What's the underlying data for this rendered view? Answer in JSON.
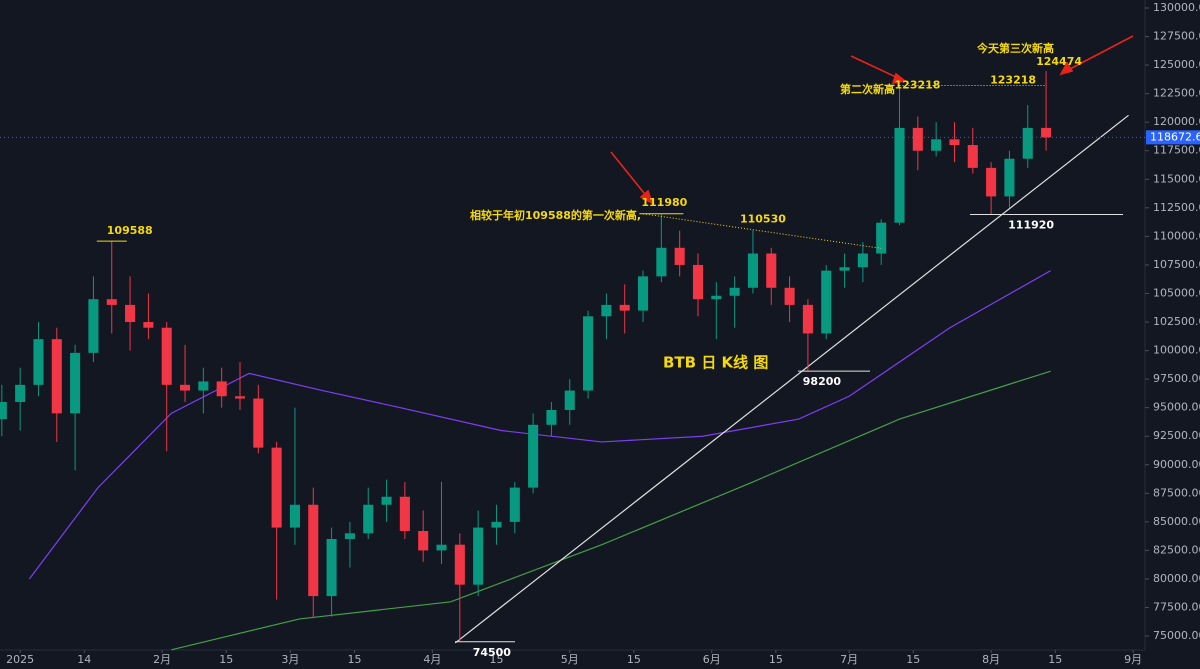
{
  "chart_data": {
    "type": "candlestick",
    "title": "BTB 日  K线 图",
    "annotations": [
      "相较于年初109588的第一次新高,",
      "第二次新高",
      "今天第三次新高"
    ],
    "up_color": "#089981",
    "down_color": "#f23645",
    "x": [
      -4,
      0,
      4,
      8,
      12,
      16,
      20,
      24,
      28,
      32,
      36,
      40,
      44,
      48,
      52,
      56,
      60,
      64,
      68,
      72,
      76,
      80,
      84,
      88,
      92,
      96,
      100,
      104,
      108,
      112,
      116,
      120,
      124,
      128,
      132,
      136,
      140,
      144,
      148,
      152,
      156,
      160,
      164,
      168,
      172,
      176,
      180,
      184,
      188,
      192,
      196,
      200,
      204,
      208,
      212,
      216,
      220,
      224
    ],
    "open": [
      94000,
      95500,
      97000,
      101000,
      94500,
      99800,
      104500,
      104000,
      102500,
      102000,
      97000,
      96500,
      97300,
      96000,
      95800,
      91500,
      84500,
      86500,
      78500,
      83500,
      84000,
      86500,
      87200,
      84200,
      82500,
      83000,
      79500,
      84500,
      85000,
      88000,
      93500,
      94800,
      96500,
      103000,
      104000,
      103500,
      106500,
      109000,
      107500,
      104500,
      104800,
      105500,
      108500,
      105500,
      104000,
      101500,
      107000,
      107300,
      108500,
      111200,
      119500,
      117500,
      118500,
      118000,
      116000,
      113500,
      116800,
      119500
    ],
    "high": [
      97000,
      98500,
      102500,
      102000,
      100500,
      106500,
      109588,
      106500,
      105000,
      102500,
      100500,
      98500,
      98500,
      99000,
      97000,
      92000,
      95000,
      88000,
      84500,
      85000,
      88000,
      88700,
      88500,
      86000,
      88500,
      84000,
      86000,
      86500,
      88500,
      94500,
      95500,
      97500,
      103500,
      105000,
      105800,
      107000,
      111980,
      110500,
      108500,
      106000,
      106500,
      110530,
      109000,
      106500,
      104500,
      107500,
      108500,
      109500,
      111500,
      123218,
      120500,
      120000,
      120000,
      119500,
      116500,
      117500,
      121500,
      124474
    ],
    "low": [
      92500,
      93000,
      96000,
      92000,
      89500,
      99000,
      101500,
      100000,
      101000,
      91200,
      95500,
      94500,
      95000,
      94800,
      91000,
      78200,
      83000,
      76600,
      76700,
      81000,
      83500,
      85000,
      83500,
      81500,
      81300,
      74500,
      78500,
      83000,
      84000,
      87500,
      92500,
      93500,
      95800,
      101000,
      101500,
      102500,
      106000,
      106500,
      103000,
      101000,
      102000,
      105000,
      104000,
      102500,
      98200,
      101000,
      105500,
      106000,
      107500,
      111000,
      115800,
      117000,
      116500,
      115500,
      111920,
      112500,
      116000,
      117500
    ],
    "close": [
      95500,
      97000,
      101000,
      94500,
      99800,
      104500,
      104000,
      102500,
      102000,
      97000,
      96500,
      97300,
      96000,
      95800,
      91500,
      84500,
      86500,
      78500,
      83500,
      84000,
      86500,
      87200,
      84200,
      82500,
      83000,
      79500,
      84500,
      85000,
      88000,
      93500,
      94800,
      96500,
      103000,
      104000,
      103500,
      106500,
      109000,
      107500,
      104500,
      104800,
      105500,
      108500,
      105500,
      104000,
      101500,
      107000,
      107300,
      108500,
      111200,
      119500,
      117500,
      118500,
      118000,
      116000,
      113500,
      116800,
      119500,
      118672.64
    ],
    "lines": [
      {
        "color": "#7e3ff2",
        "x": [
          2,
          17,
          33,
          50,
          66,
          83,
          105,
          127,
          149,
          170,
          181,
          203,
          225
        ],
        "values": [
          80000,
          88000,
          94500,
          98000,
          96500,
          95000,
          93000,
          92000,
          92500,
          94000,
          96000,
          102000,
          107000
        ]
      },
      {
        "color": "#43a047",
        "x": [
          33,
          61,
          94,
          127,
          160,
          192,
          225
        ],
        "values": [
          73800,
          76500,
          78000,
          83000,
          88500,
          94000,
          98200
        ]
      },
      {
        "color": "#e0e0e0",
        "x": [
          95,
          242
        ],
        "values": [
          74400,
          120600
        ]
      }
    ],
    "xlim": [
      -4.4,
      245.6
    ],
    "ylim": [
      73780,
      130700
    ],
    "xticks": [
      {
        "value": 0,
        "label": "2025"
      },
      14,
      {
        "value": 31,
        "label": "2月"
      },
      {
        "value": 45,
        "label": "15"
      },
      {
        "value": 59,
        "label": "3月"
      },
      {
        "value": 73,
        "label": "15"
      },
      {
        "value": 90,
        "label": "4月"
      },
      {
        "value": 104,
        "label": "15"
      },
      {
        "value": 120,
        "label": "5月"
      },
      {
        "value": 134,
        "label": "15"
      },
      {
        "value": 151,
        "label": "6月"
      },
      {
        "value": 165,
        "label": "15"
      },
      {
        "value": 181,
        "label": "7月"
      },
      {
        "value": 195,
        "label": "15"
      },
      {
        "value": 212,
        "label": "8月"
      },
      {
        "value": 226,
        "label": "15"
      },
      {
        "value": 243,
        "label": "9月"
      }
    ],
    "yticks": [
      {
        "value": 75000,
        "label": "75000.00"
      },
      {
        "value": 77500,
        "label": "77500.00"
      },
      {
        "value": 80000,
        "label": "80000.00"
      },
      {
        "value": 82500,
        "label": "82500.00"
      },
      {
        "value": 85000,
        "label": "85000.00"
      },
      {
        "value": 87500,
        "label": "87500.00"
      },
      {
        "value": 90000,
        "label": "90000.00"
      },
      {
        "value": 92500,
        "label": "92500.00"
      },
      {
        "value": 95000,
        "label": "95000.00"
      },
      {
        "value": 97500,
        "label": "97500.00"
      },
      {
        "value": 100000,
        "label": "100000.00"
      },
      {
        "value": 102500,
        "label": "102500.00"
      },
      {
        "value": 105000,
        "label": "105000.00"
      },
      {
        "value": 107500,
        "label": "107500.00"
      },
      {
        "value": 110000,
        "label": "110000.00"
      },
      {
        "value": 112500,
        "label": "112500.00"
      },
      {
        "value": 115000,
        "label": "115000.00"
      },
      {
        "value": 117500,
        "label": "117500.00"
      },
      {
        "value": 120000,
        "label": "120000.00"
      },
      {
        "value": 122500,
        "label": "122500.00"
      },
      {
        "value": 125000,
        "label": "125000.00"
      },
      {
        "value": 127500,
        "label": "127500.00"
      },
      {
        "value": 130000,
        "label": "130000.00"
      }
    ]
  }
}
